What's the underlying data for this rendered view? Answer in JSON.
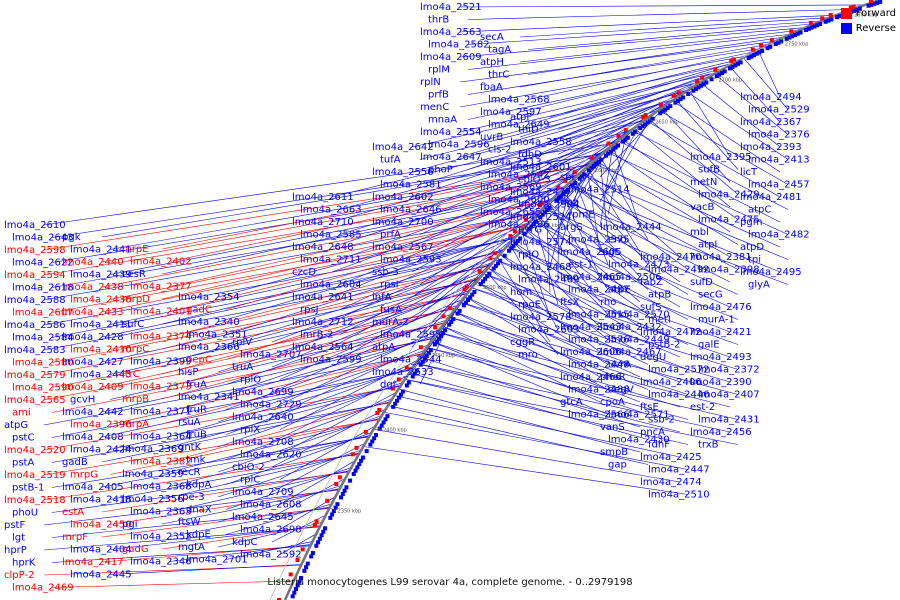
{
  "caption": "Listeria monocytogenes L99 serovar 4a, complete genome. - 0..2979198",
  "legend": [
    {
      "label": "Forward",
      "color": "#ff0000"
    },
    {
      "label": "Reverse",
      "color": "#0000ff"
    }
  ],
  "colors": {
    "forward": "#ff0000",
    "reverse": "#0000ff",
    "backbone": "#777777"
  },
  "ticks": [
    "2350 kbp",
    "2400 kbp",
    "2450 kbp",
    "2500 kbp",
    "2550 kbp",
    "2600 kbp",
    "2650 kbp",
    "2700 kbp",
    "2750 kbp",
    "2800 kbp"
  ],
  "labels": [
    {
      "t": "lmo4a_2610",
      "c": "b"
    },
    {
      "t": "lmo4a_2643",
      "c": "b"
    },
    {
      "t": "lmo4a_2598",
      "c": "r"
    },
    {
      "t": "lmo4a_2622",
      "c": "b"
    },
    {
      "t": "lmo4a_2594",
      "c": "r"
    },
    {
      "t": "lmo4a_2618",
      "c": "b"
    },
    {
      "t": "lmo4a_2588",
      "c": "b"
    },
    {
      "t": "lmo4a_2607",
      "c": "r"
    },
    {
      "t": "lmo4a_2586",
      "c": "b"
    },
    {
      "t": "lmo4a_2584",
      "c": "b"
    },
    {
      "t": "lmo4a_2583",
      "c": "b"
    },
    {
      "t": "lmo4a_2580",
      "c": "r"
    },
    {
      "t": "lmo4a_2579",
      "c": "r"
    },
    {
      "t": "lmo4a_2590",
      "c": "r"
    },
    {
      "t": "lmo4a_2565",
      "c": "r"
    },
    {
      "t": "ami",
      "c": "r"
    },
    {
      "t": "atpG",
      "c": "b"
    },
    {
      "t": "pstC",
      "c": "b"
    },
    {
      "t": "lmo4a_2520",
      "c": "r"
    },
    {
      "t": "pstA",
      "c": "b"
    },
    {
      "t": "lmo4a_2519",
      "c": "r"
    },
    {
      "t": "pstB-1",
      "c": "b"
    },
    {
      "t": "lmo4a_2518",
      "c": "r"
    },
    {
      "t": "phoU",
      "c": "b"
    },
    {
      "t": "pstF",
      "c": "b"
    },
    {
      "t": "lgt",
      "c": "b"
    },
    {
      "t": "hprP",
      "c": "b"
    },
    {
      "t": "hprK",
      "c": "b"
    },
    {
      "t": "clpP-2",
      "c": "r"
    },
    {
      "t": "lmo4a_2469",
      "c": "r"
    },
    {
      "t": "pgk",
      "c": "b"
    },
    {
      "t": "lmo4a_2441",
      "c": "b"
    },
    {
      "t": "lmo4a_2440",
      "c": "r"
    },
    {
      "t": "lmo4a_2439",
      "c": "b"
    },
    {
      "t": "lmo4a_2438",
      "c": "r"
    },
    {
      "t": "lmo4a_2436",
      "c": "r"
    },
    {
      "t": "lmo4a_2433",
      "c": "r"
    },
    {
      "t": "lmo4a_2411",
      "c": "b"
    },
    {
      "t": "lmo4a_2428",
      "c": "b"
    },
    {
      "t": "lmo4a_2410",
      "c": "r"
    },
    {
      "t": "lmo4a_2427",
      "c": "b"
    },
    {
      "t": "lmo4a_2443",
      "c": "b"
    },
    {
      "t": "lmo4a_2409",
      "c": "r"
    },
    {
      "t": "gcvH",
      "c": "b"
    },
    {
      "t": "lmo4a_2442",
      "c": "b"
    },
    {
      "t": "lmo4a_2396",
      "c": "r"
    },
    {
      "t": "lmo4a_2408",
      "c": "b"
    },
    {
      "t": "lmo4a_2424",
      "c": "b"
    },
    {
      "t": "gadB",
      "c": "b"
    },
    {
      "t": "mrpG",
      "c": "r"
    },
    {
      "t": "lmo4a_2405",
      "c": "b"
    },
    {
      "t": "lmo4a_2418",
      "c": "b"
    },
    {
      "t": "estA",
      "c": "r"
    },
    {
      "t": "lmo4a_2450",
      "c": "r"
    },
    {
      "t": "mrpF",
      "c": "r"
    },
    {
      "t": "lmo4a_2404",
      "c": "b"
    },
    {
      "t": "lmo4a_2417",
      "c": "r"
    },
    {
      "t": "lmo4a_2445",
      "c": "b"
    },
    {
      "t": "mrpE",
      "c": "r"
    },
    {
      "t": "lmo4a_2402",
      "c": "r"
    },
    {
      "t": "cesR",
      "c": "b"
    },
    {
      "t": "lmo4a_2377",
      "c": "r"
    },
    {
      "t": "mrpD",
      "c": "r"
    },
    {
      "t": "lmo4a_2401",
      "c": "r"
    },
    {
      "t": "sufC",
      "c": "b"
    },
    {
      "t": "lmo4a_2374",
      "c": "r"
    },
    {
      "t": "mrpC",
      "c": "r"
    },
    {
      "t": "lmo4a_2399",
      "c": "b"
    },
    {
      "t": "ltrC",
      "c": "r"
    },
    {
      "t": "lmo4a_2373",
      "c": "r"
    },
    {
      "t": "mrpB",
      "c": "r"
    },
    {
      "t": "lmo4a_2371",
      "c": "b"
    },
    {
      "t": "mrpA",
      "c": "r"
    },
    {
      "t": "lmo4a_2364",
      "c": "b"
    },
    {
      "t": "lmo4a_2369",
      "c": "b"
    },
    {
      "t": "lmo4a_2382",
      "c": "r"
    },
    {
      "t": "lmo4a_2359",
      "c": "b"
    },
    {
      "t": "lmo4a_2368",
      "c": "b"
    },
    {
      "t": "lmo4a_2356",
      "c": "b"
    },
    {
      "t": "lmo4a_2363",
      "c": "b"
    },
    {
      "t": "pgi",
      "c": "b"
    },
    {
      "t": "lmo4a_2352",
      "c": "b"
    },
    {
      "t": "gadG",
      "c": "r"
    },
    {
      "t": "lmo4a_2346",
      "c": "b"
    },
    {
      "t": "lmo4a_2354",
      "c": "b"
    },
    {
      "t": "gadC",
      "c": "r"
    },
    {
      "t": "lmo4a_2340",
      "c": "b"
    },
    {
      "t": "lmo4a_2351",
      "c": "b"
    },
    {
      "t": "lmo4a_2366",
      "c": "b"
    },
    {
      "t": "pepC",
      "c": "r"
    },
    {
      "t": "hisP",
      "c": "b"
    },
    {
      "t": "fruA",
      "c": "b"
    },
    {
      "t": "lmo4a_2341",
      "c": "b"
    },
    {
      "t": "fruR",
      "c": "b"
    },
    {
      "t": "rsuA",
      "c": "b"
    },
    {
      "t": "fruB",
      "c": "b"
    },
    {
      "t": "gntK",
      "c": "b"
    },
    {
      "t": "tmk",
      "c": "b"
    },
    {
      "t": "recR",
      "c": "b"
    },
    {
      "t": "kdpA",
      "c": "b"
    },
    {
      "t": "rpe-3",
      "c": "b"
    },
    {
      "t": "dnaX",
      "c": "b"
    },
    {
      "t": "ftsW",
      "c": "b"
    },
    {
      "t": "kdpE",
      "c": "b"
    },
    {
      "t": "mgtA",
      "c": "b"
    },
    {
      "t": "lmo4a_2701",
      "c": "b"
    },
    {
      "t": "rplV",
      "c": "b"
    },
    {
      "t": "lmo4a_2707",
      "c": "b"
    },
    {
      "t": "truA",
      "c": "b"
    },
    {
      "t": "rplO",
      "c": "b"
    },
    {
      "t": "lmo4a_2699",
      "c": "b"
    },
    {
      "t": "lmo4a_2729",
      "c": "b"
    },
    {
      "t": "lmo4a_2640",
      "c": "b"
    },
    {
      "t": "rplX",
      "c": "b"
    },
    {
      "t": "lmo4a_2708",
      "c": "b"
    },
    {
      "t": "lmo4a_2620",
      "c": "b"
    },
    {
      "t": "cbiO-2",
      "c": "b"
    },
    {
      "t": "rplC",
      "c": "b"
    },
    {
      "t": "lmo4a_2709",
      "c": "b"
    },
    {
      "t": "lmo4a_2608",
      "c": "b"
    },
    {
      "t": "lmo4a_2645",
      "c": "b"
    },
    {
      "t": "lmo4a_2698",
      "c": "b"
    },
    {
      "t": "kdpC",
      "c": "b"
    },
    {
      "t": "lmo4a_2592",
      "c": "b"
    },
    {
      "t": "lmo4a_2611",
      "c": "b"
    },
    {
      "t": "lmo4a_2663",
      "c": "b"
    },
    {
      "t": "lmo4a_2710",
      "c": "b"
    },
    {
      "t": "lmo4a_2585",
      "c": "b"
    },
    {
      "t": "lmo4a_2648",
      "c": "b"
    },
    {
      "t": "lmo4a_2711",
      "c": "b"
    },
    {
      "t": "czcD",
      "c": "b"
    },
    {
      "t": "lmo4a_2604",
      "c": "b"
    },
    {
      "t": "lmo4a_2641",
      "c": "b"
    },
    {
      "t": "rpsJ",
      "c": "b"
    },
    {
      "t": "lmo4a_2712",
      "c": "b"
    },
    {
      "t": "lmrB-2",
      "c": "b"
    },
    {
      "t": "lmo4a_2564",
      "c": "b"
    },
    {
      "t": "lmo4a_2599",
      "c": "b"
    },
    {
      "t": "lmo4a_2642",
      "c": "b"
    },
    {
      "t": "tufA",
      "c": "b"
    },
    {
      "t": "lmo4a_2556",
      "c": "b"
    },
    {
      "t": "lmo4a_2581",
      "c": "b"
    },
    {
      "t": "lmo4a_2602",
      "c": "b"
    },
    {
      "t": "lmo4a_2646",
      "c": "b"
    },
    {
      "t": "lmo4a_2700",
      "c": "b"
    },
    {
      "t": "prfA",
      "c": "b"
    },
    {
      "t": "lmo4a_2567",
      "c": "b"
    },
    {
      "t": "lmo4a_2593",
      "c": "b"
    },
    {
      "t": "ssb-3",
      "c": "b"
    },
    {
      "t": "rpsI",
      "c": "b"
    },
    {
      "t": "infA",
      "c": "b"
    },
    {
      "t": "fusA",
      "c": "b"
    },
    {
      "t": "murA-2",
      "c": "b"
    },
    {
      "t": "lmo4a_2595",
      "c": "b"
    },
    {
      "t": "atpA",
      "c": "b"
    },
    {
      "t": "lmo4a_2544",
      "c": "b"
    },
    {
      "t": "lmo4a_2633",
      "c": "b"
    },
    {
      "t": "dgt",
      "c": "b"
    },
    {
      "t": "lmo4a_2521",
      "c": "b"
    },
    {
      "t": "thrB",
      "c": "b"
    },
    {
      "t": "lmo4a_2563",
      "c": "b"
    },
    {
      "t": "lmo4a_2582",
      "c": "b"
    },
    {
      "t": "lmo4a_2609",
      "c": "b"
    },
    {
      "t": "rplM",
      "c": "b"
    },
    {
      "t": "rplN",
      "c": "b"
    },
    {
      "t": "prfB",
      "c": "b"
    },
    {
      "t": "menC",
      "c": "b"
    },
    {
      "t": "mnaA",
      "c": "b"
    },
    {
      "t": "lmo4a_2554",
      "c": "b"
    },
    {
      "t": "lmo4a_2596",
      "c": "b"
    },
    {
      "t": "lmo4a_2647",
      "c": "b"
    },
    {
      "t": "phoP",
      "c": "b"
    },
    {
      "t": "secA",
      "c": "b"
    },
    {
      "t": "tagA",
      "c": "b"
    },
    {
      "t": "atpH",
      "c": "b"
    },
    {
      "t": "thrC",
      "c": "b"
    },
    {
      "t": "fbaA",
      "c": "b"
    },
    {
      "t": "lmo4a_2568",
      "c": "b"
    },
    {
      "t": "lmo4a_2597",
      "c": "b"
    },
    {
      "t": "lmo4a_2649",
      "c": "b"
    },
    {
      "t": "uvrB",
      "c": "b"
    },
    {
      "t": "cls-2",
      "c": "b"
    },
    {
      "t": "lmo4a_2513",
      "c": "b"
    },
    {
      "t": "lmo4a_2542",
      "c": "b"
    },
    {
      "t": "lmo4a_2569",
      "c": "b"
    },
    {
      "t": "lmo4a_2600",
      "c": "b"
    },
    {
      "t": "lmo4a_2655",
      "c": "b"
    },
    {
      "t": "lmo4a_2486",
      "c": "b"
    },
    {
      "t": "atpF",
      "c": "b"
    },
    {
      "t": "thiD",
      "c": "b"
    },
    {
      "t": "lmo4a_2558",
      "c": "b"
    },
    {
      "t": "fdhD",
      "c": "b"
    },
    {
      "t": "lmo4a_2601",
      "c": "b"
    },
    {
      "t": "cbiO-3",
      "c": "b"
    },
    {
      "t": "lmo4a_2477",
      "c": "b"
    },
    {
      "t": "lmo4a_2504",
      "c": "b"
    },
    {
      "t": "lmo4a_2524",
      "c": "b"
    },
    {
      "t": "pyrG",
      "c": "b"
    },
    {
      "t": "lmo4a_2574",
      "c": "b"
    },
    {
      "t": "rplQ",
      "c": "b"
    },
    {
      "t": "lmo4a_2468",
      "c": "b"
    },
    {
      "t": "lmo4a_2489",
      "c": "b"
    },
    {
      "t": "hom",
      "c": "b"
    },
    {
      "t": "rpoE",
      "c": "b"
    },
    {
      "t": "lmo4a_2578",
      "c": "b"
    },
    {
      "t": "lmo4a_2603",
      "c": "b"
    },
    {
      "t": "cggR",
      "c": "b"
    },
    {
      "t": "mro",
      "c": "b"
    },
    {
      "t": "spl",
      "c": "b"
    },
    {
      "t": "lmo4a_2514",
      "c": "b"
    },
    {
      "t": "upp",
      "c": "b"
    },
    {
      "t": "rpmE",
      "c": "b"
    },
    {
      "t": "argS",
      "c": "b"
    },
    {
      "t": "lmo4a_2575",
      "c": "b"
    },
    {
      "t": "lmo4a_2605",
      "c": "b"
    },
    {
      "t": "est-1",
      "c": "b"
    },
    {
      "t": "lmo4a_2465",
      "c": "b"
    },
    {
      "t": "lmo4a_2487",
      "c": "b"
    },
    {
      "t": "ftsX",
      "c": "b"
    },
    {
      "t": "lmo4a_2515",
      "c": "b"
    },
    {
      "t": "lmo4a_2543",
      "c": "b"
    },
    {
      "t": "lmo4a_2576",
      "c": "b"
    },
    {
      "t": "lmo4a_2606",
      "c": "b"
    },
    {
      "t": "lmo4a_2448",
      "c": "b"
    },
    {
      "t": "lmo4a_2466",
      "c": "b"
    },
    {
      "t": "lmo4a_2488",
      "c": "b"
    },
    {
      "t": "gtcA",
      "c": "b"
    },
    {
      "t": "lmo4a_2566",
      "c": "b"
    },
    {
      "t": "lmo4a_2444",
      "c": "b"
    },
    {
      "t": "eno",
      "c": "b"
    },
    {
      "t": "sigL",
      "c": "b"
    },
    {
      "t": "lmo4a_2473",
      "c": "b"
    },
    {
      "t": "lmo4a_2506",
      "c": "b"
    },
    {
      "t": "atpE",
      "c": "b"
    },
    {
      "t": "rho",
      "c": "b"
    },
    {
      "t": "lmo4a_2570",
      "c": "b"
    },
    {
      "t": "lmo4a_2432",
      "c": "b"
    },
    {
      "t": "lmo4a_2449",
      "c": "b"
    },
    {
      "t": "lmo4a_2467",
      "c": "b"
    },
    {
      "t": "uvrA",
      "c": "b"
    },
    {
      "t": "phoR",
      "c": "b"
    },
    {
      "t": "degV",
      "c": "b"
    },
    {
      "t": "cpoA",
      "c": "b"
    },
    {
      "t": "lmo4a_2571",
      "c": "b"
    },
    {
      "t": "vanS",
      "c": "b"
    },
    {
      "t": "lmo4a_2430",
      "c": "b"
    },
    {
      "t": "smpB",
      "c": "b"
    },
    {
      "t": "gap",
      "c": "b"
    },
    {
      "t": "lmo4a_2470",
      "c": "b"
    },
    {
      "t": "lmo4a_2492",
      "c": "b"
    },
    {
      "t": "fabZ",
      "c": "b"
    },
    {
      "t": "atpB",
      "c": "b"
    },
    {
      "t": "sufS",
      "c": "b"
    },
    {
      "t": "metI",
      "c": "b"
    },
    {
      "t": "lmo4a_2472",
      "c": "b"
    },
    {
      "t": "pstB-2",
      "c": "b"
    },
    {
      "t": "degU",
      "c": "b"
    },
    {
      "t": "lmo4a_2572",
      "c": "b"
    },
    {
      "t": "lmo4a_2406",
      "c": "b"
    },
    {
      "t": "lmo4a_2446",
      "c": "b"
    },
    {
      "t": "ftsE",
      "c": "b"
    },
    {
      "t": "ssb-2",
      "c": "b"
    },
    {
      "t": "pncA",
      "c": "b"
    },
    {
      "t": "fdhF",
      "c": "b"
    },
    {
      "t": "lmo4a_2425",
      "c": "b"
    },
    {
      "t": "lmo4a_2447",
      "c": "b"
    },
    {
      "t": "lmo4a_2474",
      "c": "b"
    },
    {
      "t": "lmo4a_2510",
      "c": "b"
    },
    {
      "t": "lmo4a_2395",
      "c": "b"
    },
    {
      "t": "sufB",
      "c": "b"
    },
    {
      "t": "metN",
      "c": "b"
    },
    {
      "t": "lmo4a_2429",
      "c": "b"
    },
    {
      "t": "vacB",
      "c": "b"
    },
    {
      "t": "lmo4a_2475",
      "c": "b"
    },
    {
      "t": "mbl",
      "c": "b"
    },
    {
      "t": "atpI",
      "c": "b"
    },
    {
      "t": "lmo4a_2381",
      "c": "b"
    },
    {
      "t": "lmo4a_2398",
      "c": "b"
    },
    {
      "t": "sufD",
      "c": "b"
    },
    {
      "t": "secG",
      "c": "b"
    },
    {
      "t": "lmo4a_2476",
      "c": "b"
    },
    {
      "t": "murA-1",
      "c": "b"
    },
    {
      "t": "lmo4a_2421",
      "c": "b"
    },
    {
      "t": "galE",
      "c": "b"
    },
    {
      "t": "lmo4a_2493",
      "c": "b"
    },
    {
      "t": "lmo4a_2372",
      "c": "b"
    },
    {
      "t": "lmo4a_2390",
      "c": "b"
    },
    {
      "t": "lmo4a_2407",
      "c": "b"
    },
    {
      "t": "est-2",
      "c": "b"
    },
    {
      "t": "lmo4a_2431",
      "c": "b"
    },
    {
      "t": "lmo4a_2456",
      "c": "b"
    },
    {
      "t": "trxB",
      "c": "b"
    },
    {
      "t": "lmo4a_2494",
      "c": "b"
    },
    {
      "t": "lmo4a_2529",
      "c": "b"
    },
    {
      "t": "lmo4a_2367",
      "c": "b"
    },
    {
      "t": "lmo4a_2376",
      "c": "b"
    },
    {
      "t": "lmo4a_2393",
      "c": "b"
    },
    {
      "t": "lmo4a_2413",
      "c": "b"
    },
    {
      "t": "licT",
      "c": "b"
    },
    {
      "t": "lmo4a_2457",
      "c": "b"
    },
    {
      "t": "lmo4a_2481",
      "c": "b"
    },
    {
      "t": "atpC",
      "c": "b"
    },
    {
      "t": "pgm",
      "c": "b"
    },
    {
      "t": "lmo4a_2482",
      "c": "b"
    },
    {
      "t": "atpD",
      "c": "b"
    },
    {
      "t": "tpi",
      "c": "b"
    },
    {
      "t": "lmo4a_2495",
      "c": "b"
    },
    {
      "t": "glyA",
      "c": "b"
    }
  ]
}
